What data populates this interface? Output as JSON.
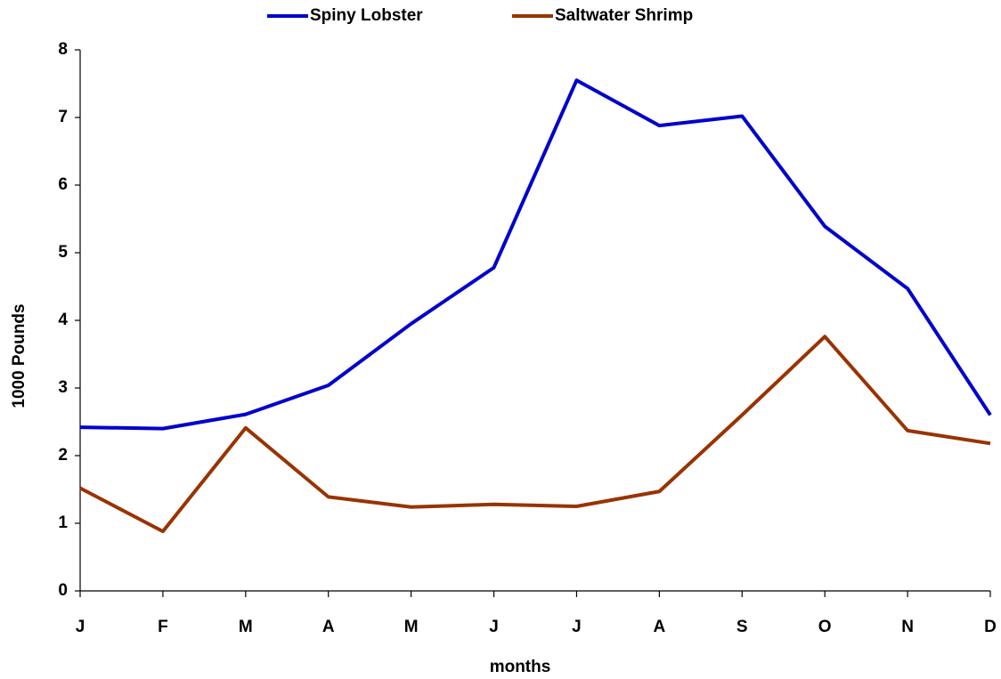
{
  "chart_data": {
    "type": "line",
    "x_label": "months",
    "y_label": "1000 Pounds",
    "categories": [
      "J",
      "F",
      "M",
      "A",
      "M",
      "J",
      "J",
      "A",
      "S",
      "O",
      "N",
      "D"
    ],
    "series": [
      {
        "name": "Spiny Lobster",
        "color": "#0000cc",
        "values": [
          2.42,
          2.4,
          2.61,
          3.04,
          3.95,
          4.78,
          7.55,
          6.88,
          7.02,
          5.39,
          4.47,
          2.6
        ]
      },
      {
        "name": "Saltwater Shrimp",
        "color": "#993300",
        "values": [
          1.52,
          0.88,
          2.41,
          1.39,
          1.24,
          1.28,
          1.25,
          1.47,
          2.6,
          3.76,
          2.37,
          2.18
        ]
      }
    ],
    "ylim": [
      0,
      8
    ],
    "yticks": [
      0,
      1,
      2,
      3,
      4,
      5,
      6,
      7,
      8
    ],
    "grid": false,
    "legend": "top"
  }
}
